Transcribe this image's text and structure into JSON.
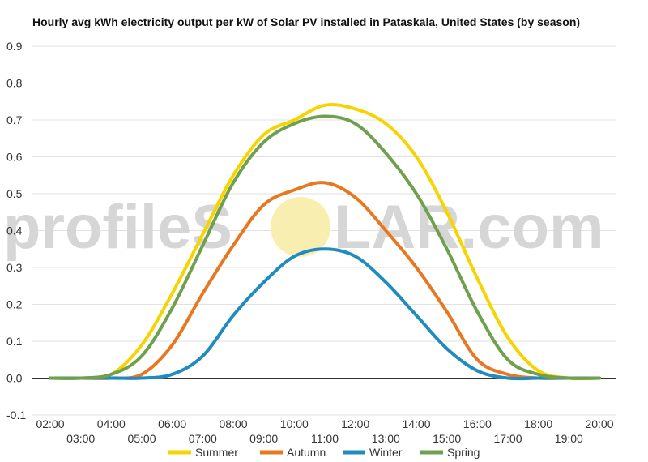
{
  "watermark": {
    "left_text": "profileS",
    "right_text": "LAR.com",
    "sun_color": "#f7eeb0"
  },
  "chart_data": {
    "type": "line",
    "title": "Hourly avg kWh electricity output per kW of Solar PV installed in Pataskala, United States (by season)",
    "xlabel": "",
    "ylabel": "",
    "x": [
      2,
      3,
      4,
      5,
      6,
      7,
      8,
      9,
      10,
      11,
      12,
      13,
      14,
      15,
      16,
      17,
      18,
      19,
      20
    ],
    "x_tick_labels": [
      "02:00",
      "03:00",
      "04:00",
      "05:00",
      "06:00",
      "07:00",
      "08:00",
      "09:00",
      "10:00",
      "11:00",
      "12:00",
      "13:00",
      "14:00",
      "15:00",
      "16:00",
      "17:00",
      "18:00",
      "19:00",
      "20:00"
    ],
    "ylim": [
      -0.1,
      0.9
    ],
    "y_ticks": [
      "-0.1",
      "0.0",
      "0.1",
      "0.2",
      "0.3",
      "0.4",
      "0.5",
      "0.6",
      "0.7",
      "0.8",
      "0.9"
    ],
    "grid": true,
    "legend_position": "bottom",
    "series": [
      {
        "name": "Summer",
        "color": "#f7d300",
        "values": [
          0.0,
          0.0,
          0.01,
          0.09,
          0.23,
          0.39,
          0.55,
          0.66,
          0.7,
          0.74,
          0.73,
          0.69,
          0.6,
          0.45,
          0.27,
          0.11,
          0.02,
          0.0,
          0.0
        ]
      },
      {
        "name": "Autumn",
        "color": "#e87722",
        "values": [
          0.0,
          0.0,
          0.0,
          0.01,
          0.09,
          0.23,
          0.36,
          0.47,
          0.51,
          0.53,
          0.49,
          0.4,
          0.3,
          0.18,
          0.05,
          0.01,
          0.0,
          0.0,
          0.0
        ]
      },
      {
        "name": "Winter",
        "color": "#1f8bbf",
        "values": [
          0.0,
          0.0,
          0.0,
          0.0,
          0.01,
          0.06,
          0.17,
          0.26,
          0.33,
          0.35,
          0.33,
          0.26,
          0.17,
          0.08,
          0.02,
          0.0,
          0.0,
          0.0,
          0.0
        ]
      },
      {
        "name": "Spring",
        "color": "#6ea04d",
        "values": [
          0.0,
          0.0,
          0.01,
          0.06,
          0.19,
          0.36,
          0.53,
          0.64,
          0.69,
          0.71,
          0.69,
          0.61,
          0.5,
          0.35,
          0.18,
          0.05,
          0.01,
          0.0,
          0.0
        ]
      }
    ]
  }
}
